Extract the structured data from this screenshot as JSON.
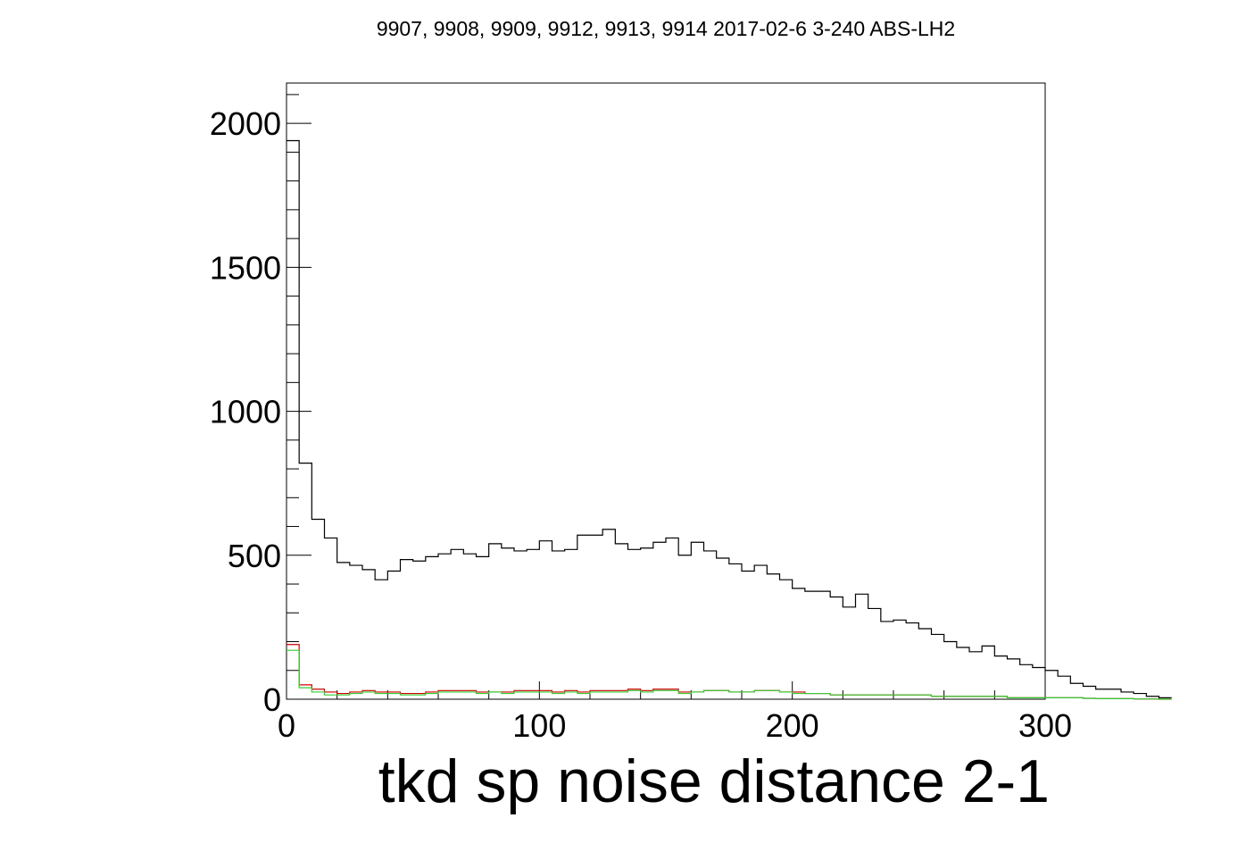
{
  "chart_data": {
    "type": "histogram",
    "title": "9907, 9908, 9909, 9912, 9913, 9914 2017-02-6 3-240 ABS-LH2",
    "xlabel": "tkd sp noise distance 2-1",
    "ylabel": "",
    "xlim": [
      0,
      300
    ],
    "ylim": [
      0,
      2140
    ],
    "x_ticks": [
      0,
      100,
      200,
      300
    ],
    "x_tick_labels": [
      "0",
      "100",
      "200",
      "300"
    ],
    "y_ticks": [
      0,
      500,
      1000,
      1500,
      2000
    ],
    "y_tick_labels": [
      "0",
      "500",
      "1000",
      "1500",
      "2000"
    ],
    "bin_width": 5,
    "bin_edges_start": 0,
    "grid": false,
    "legend": "none",
    "series": [
      {
        "color": "#000000",
        "values": [
          1940,
          820,
          625,
          560,
          475,
          465,
          450,
          415,
          445,
          485,
          480,
          495,
          505,
          520,
          505,
          495,
          540,
          525,
          515,
          520,
          550,
          515,
          520,
          570,
          570,
          590,
          540,
          520,
          525,
          545,
          560,
          500,
          545,
          515,
          490,
          470,
          445,
          465,
          435,
          415,
          385,
          375,
          375,
          355,
          320,
          365,
          315,
          270,
          275,
          265,
          245,
          225,
          200,
          180,
          165,
          185,
          150,
          140,
          120,
          110,
          100,
          80,
          55,
          45,
          35,
          35,
          25,
          20,
          10,
          5
        ]
      },
      {
        "color": "#cc0000",
        "values": [
          190,
          50,
          35,
          25,
          20,
          25,
          30,
          25,
          25,
          20,
          20,
          25,
          30,
          30,
          30,
          25,
          25,
          25,
          30,
          30,
          30,
          25,
          30,
          25,
          30,
          30,
          30,
          35,
          30,
          35,
          35,
          25,
          25,
          30,
          30,
          25,
          25,
          30,
          30,
          25,
          25,
          20,
          20,
          15,
          15,
          15,
          15,
          15,
          15,
          15,
          15,
          10,
          10,
          10,
          10,
          10,
          10,
          5,
          5,
          5,
          5,
          5,
          5,
          3,
          2,
          2,
          2,
          1,
          1,
          0
        ]
      },
      {
        "color": "#33cc33",
        "values": [
          170,
          40,
          25,
          15,
          15,
          20,
          25,
          20,
          20,
          15,
          15,
          20,
          25,
          25,
          25,
          20,
          25,
          20,
          25,
          25,
          25,
          20,
          25,
          20,
          25,
          25,
          25,
          30,
          25,
          30,
          30,
          20,
          25,
          30,
          30,
          25,
          25,
          30,
          30,
          25,
          20,
          20,
          20,
          15,
          15,
          15,
          15,
          15,
          15,
          15,
          15,
          10,
          10,
          10,
          10,
          10,
          10,
          5,
          5,
          5,
          5,
          5,
          5,
          3,
          2,
          2,
          2,
          1,
          1,
          0
        ]
      }
    ]
  }
}
